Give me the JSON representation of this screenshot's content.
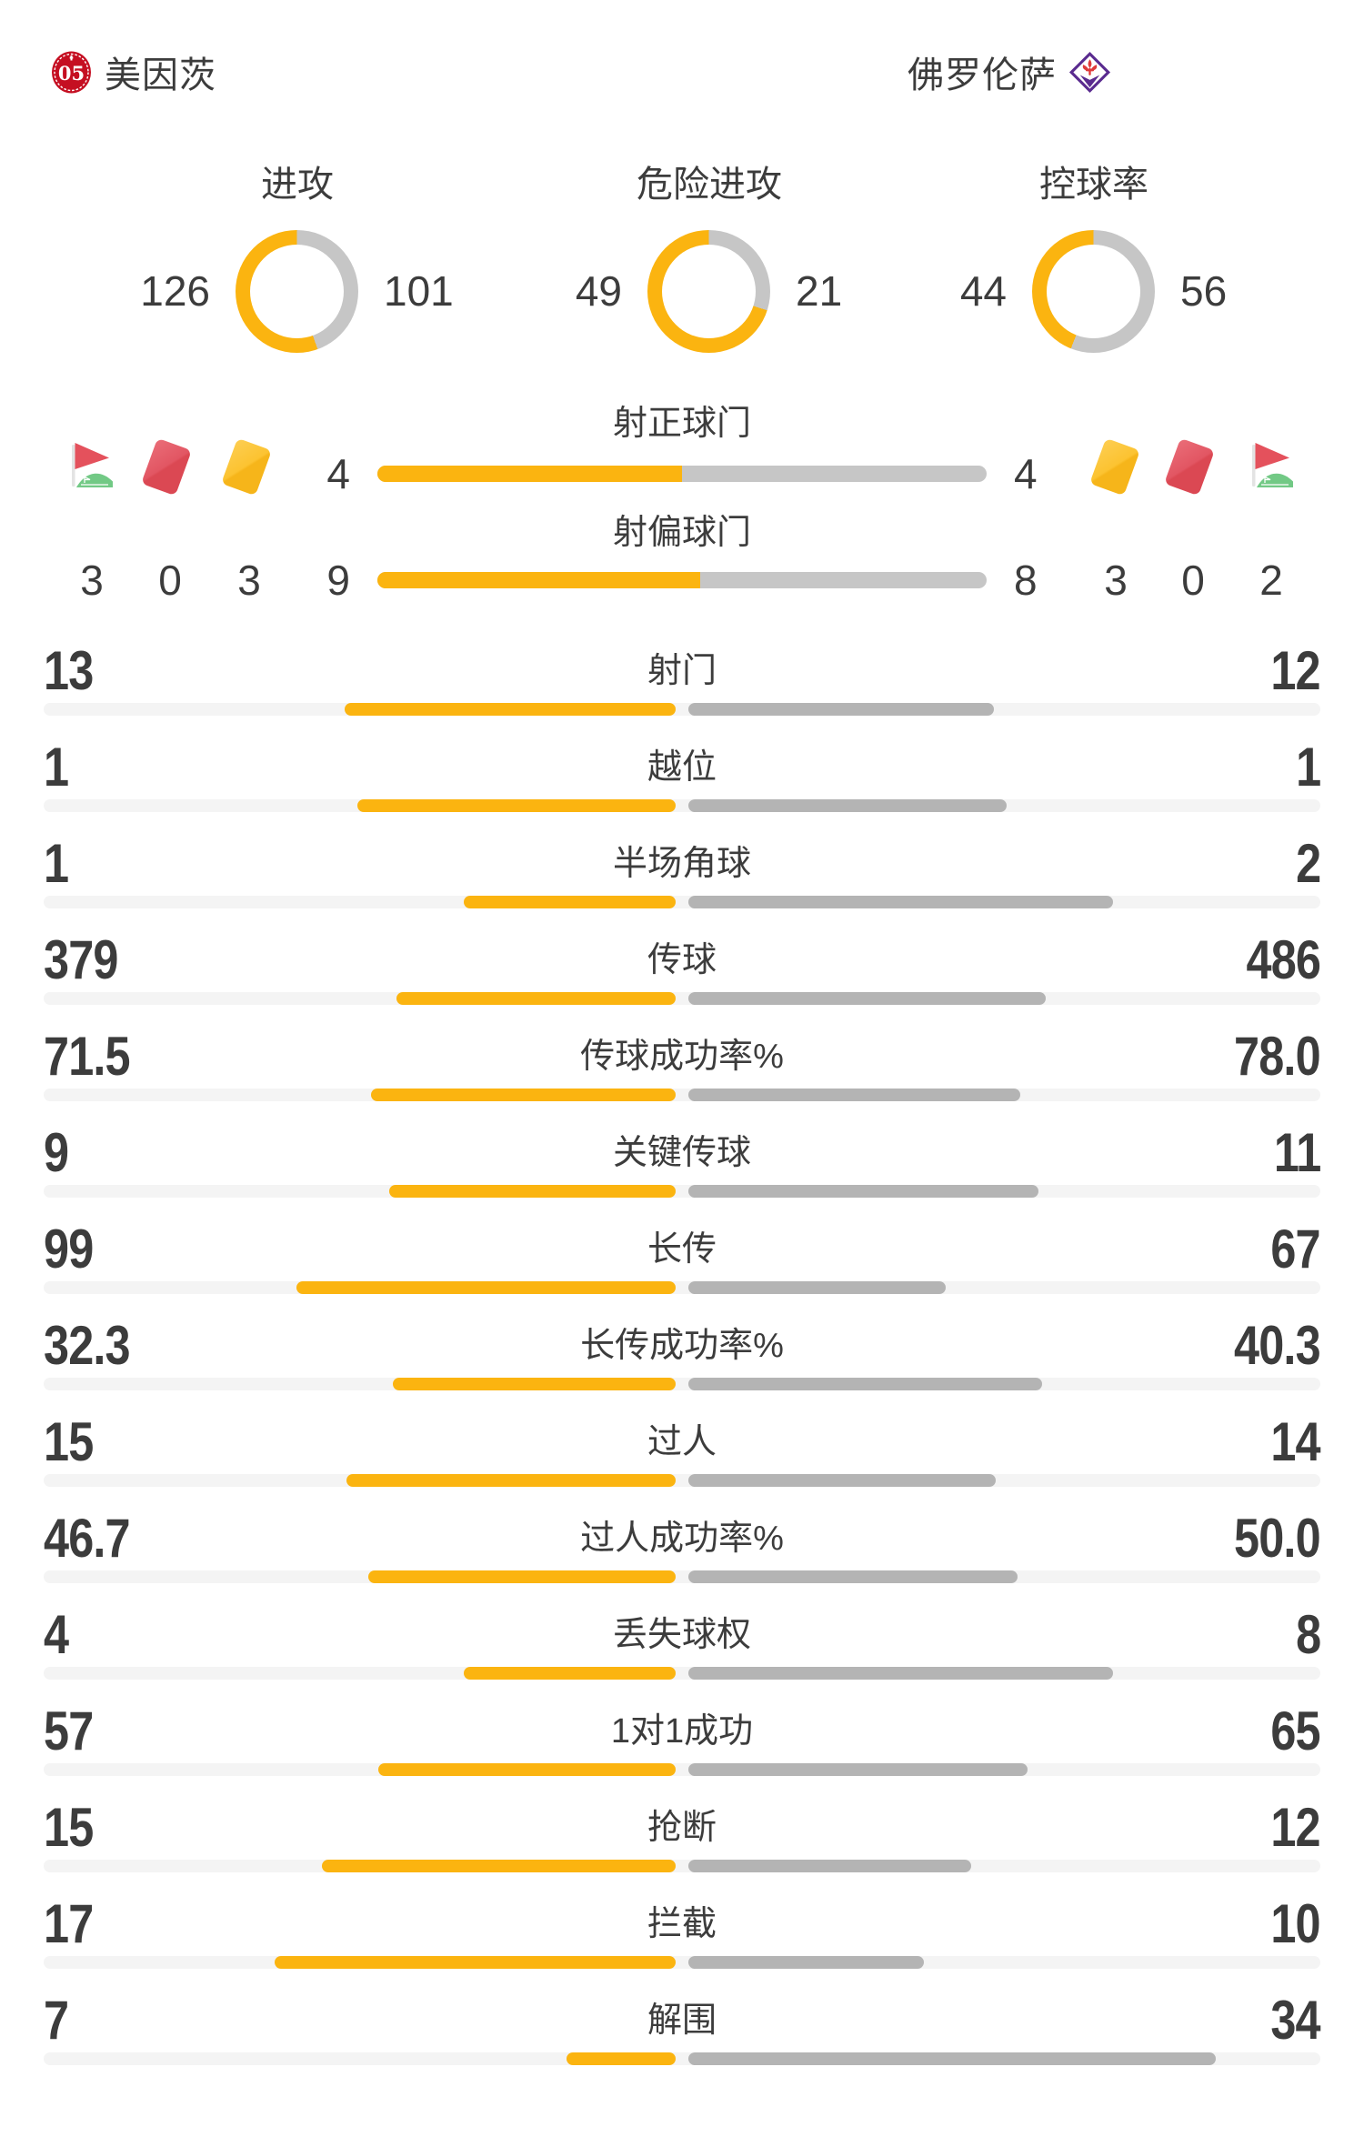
{
  "colors": {
    "home": "#FBB410",
    "away": "#B4B4B4",
    "donut_away": "#C6C6C6",
    "track": "#F4F4F4",
    "ink": "#3C3C3C",
    "card_yellow": "#FCC331",
    "card_red": "#E25663",
    "flag_red": "#E4515C",
    "flag_green": "#72C985",
    "flag_pole": "#E3E3E3",
    "mainz_red": "#C50F22",
    "fiorentina_purple": "#5A2B8F",
    "fiorentina_red": "#DF3A3A"
  },
  "teams": {
    "home": {
      "name": "美因茨"
    },
    "away": {
      "name": "佛罗伦萨"
    }
  },
  "donuts": [
    {
      "label": "进攻",
      "home": 126,
      "away": 101
    },
    {
      "label": "危险进攻",
      "home": 49,
      "away": 21
    },
    {
      "label": "控球率",
      "home": 44,
      "away": 56
    }
  ],
  "shot_bars": [
    {
      "label": "射正球门",
      "home": 4,
      "away": 4
    },
    {
      "label": "射偏球门",
      "home": 9,
      "away": 8
    }
  ],
  "cards": {
    "home": {
      "corner": "3",
      "red": "0",
      "yellow": "3"
    },
    "away": {
      "yellow": "3",
      "red": "0",
      "corner": "2"
    }
  },
  "stat_rows": [
    {
      "label": "射门",
      "home": "13",
      "away": "12"
    },
    {
      "label": "越位",
      "home": "1",
      "away": "1"
    },
    {
      "label": "半场角球",
      "home": "1",
      "away": "2"
    },
    {
      "label": "传球",
      "home": "379",
      "away": "486"
    },
    {
      "label": "传球成功率%",
      "home": "71.5",
      "away": "78.0"
    },
    {
      "label": "关键传球",
      "home": "9",
      "away": "11"
    },
    {
      "label": "长传",
      "home": "99",
      "away": "67"
    },
    {
      "label": "长传成功率%",
      "home": "32.3",
      "away": "40.3"
    },
    {
      "label": "过人",
      "home": "15",
      "away": "14"
    },
    {
      "label": "过人成功率%",
      "home": "46.7",
      "away": "50.0"
    },
    {
      "label": "丢失球权",
      "home": "4",
      "away": "8"
    },
    {
      "label": "1对1成功",
      "home": "57",
      "away": "65"
    },
    {
      "label": "抢断",
      "home": "15",
      "away": "12"
    },
    {
      "label": "拦截",
      "home": "17",
      "away": "10"
    },
    {
      "label": "解围",
      "home": "7",
      "away": "34"
    }
  ],
  "chart_data": [
    {
      "type": "pie",
      "title": "进攻",
      "legend_position": "sides",
      "series": [
        {
          "name": "美因茨",
          "value": 126
        },
        {
          "name": "佛罗伦萨",
          "value": 101
        }
      ]
    },
    {
      "type": "pie",
      "title": "危险进攻",
      "legend_position": "sides",
      "series": [
        {
          "name": "美因茨",
          "value": 49
        },
        {
          "name": "佛罗伦萨",
          "value": 21
        }
      ]
    },
    {
      "type": "pie",
      "title": "控球率",
      "legend_position": "sides",
      "series": [
        {
          "name": "美因茨",
          "value": 44
        },
        {
          "name": "佛罗伦萨",
          "value": 56
        }
      ]
    },
    {
      "type": "bar",
      "title": "比赛技术统计对比",
      "categories": [
        "射正球门",
        "射偏球门",
        "角旗-角球",
        "红牌",
        "黄牌",
        "射门",
        "越位",
        "半场角球",
        "传球",
        "传球成功率%",
        "关键传球",
        "长传",
        "长传成功率%",
        "过人",
        "过人成功率%",
        "丢失球权",
        "1对1成功",
        "抢断",
        "拦截",
        "解围"
      ],
      "series": [
        {
          "name": "美因茨",
          "values": [
            4,
            9,
            3,
            0,
            3,
            13,
            1,
            1,
            379,
            71.5,
            9,
            99,
            32.3,
            15,
            46.7,
            4,
            57,
            15,
            17,
            7
          ]
        },
        {
          "name": "佛罗伦萨",
          "values": [
            4,
            8,
            2,
            0,
            3,
            12,
            1,
            2,
            486,
            78.0,
            11,
            67,
            40.3,
            14,
            50.0,
            8,
            65,
            12,
            10,
            34
          ]
        }
      ]
    }
  ]
}
